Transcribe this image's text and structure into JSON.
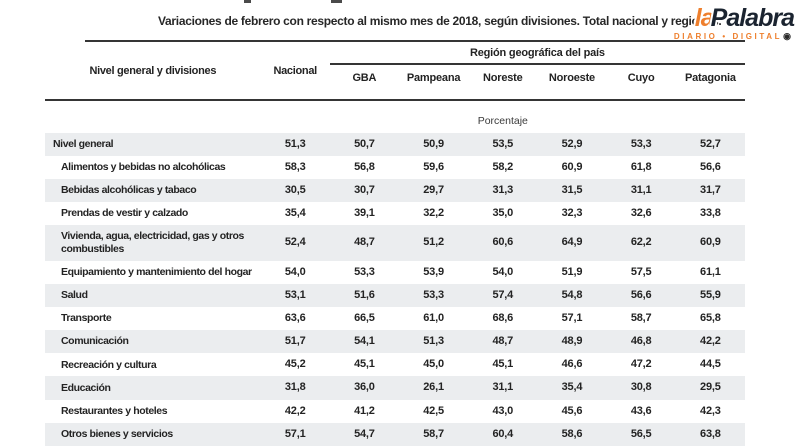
{
  "logo": {
    "name_accent": "la",
    "name_main": "Palabra",
    "tagline": "DIARIO • DIGITAL",
    "badge_glyph": "◉",
    "badge_icon_meaning": "registered-mark-icon",
    "accent_color": "#EE7F2D",
    "dark_color": "#1B2430"
  },
  "chart_data": {
    "type": "table",
    "title": "Variaciones de febrero con respecto al mismo mes de 2018, según divisiones. Total nacional y regiones.",
    "row_header": "Nivel general y divisiones",
    "national_column": "Nacional",
    "region_group_label": "Región geográfica del país",
    "region_columns": [
      "GBA",
      "Pampeana",
      "Noreste",
      "Noroeste",
      "Cuyo",
      "Patagonia"
    ],
    "unit_label": "Porcentaje",
    "stripe_color": "#EBEDEF",
    "rule_color": "#353535",
    "rows": [
      {
        "label": "Nivel general",
        "emphasis": true,
        "values": [
          "51,3",
          "50,7",
          "50,9",
          "53,5",
          "52,9",
          "53,3",
          "52,7"
        ]
      },
      {
        "label": "Alimentos y bebidas no alcohólicas",
        "values": [
          "58,3",
          "56,8",
          "59,6",
          "58,2",
          "60,9",
          "61,8",
          "56,6"
        ]
      },
      {
        "label": "Bebidas alcohólicas y tabaco",
        "values": [
          "30,5",
          "30,7",
          "29,7",
          "31,3",
          "31,5",
          "31,1",
          "31,7"
        ]
      },
      {
        "label": "Prendas de vestir y calzado",
        "values": [
          "35,4",
          "39,1",
          "32,2",
          "35,0",
          "32,3",
          "32,6",
          "33,8"
        ]
      },
      {
        "label": "Vivienda, agua, electricidad, gas y otros combustibles",
        "values": [
          "52,4",
          "48,7",
          "51,2",
          "60,6",
          "64,9",
          "62,2",
          "60,9"
        ]
      },
      {
        "label": "Equipamiento y mantenimiento del hogar",
        "values": [
          "54,0",
          "53,3",
          "53,9",
          "54,0",
          "51,9",
          "57,5",
          "61,1"
        ]
      },
      {
        "label": "Salud",
        "values": [
          "53,1",
          "51,6",
          "53,3",
          "57,4",
          "54,8",
          "56,6",
          "55,9"
        ]
      },
      {
        "label": "Transporte",
        "values": [
          "63,6",
          "66,5",
          "61,0",
          "68,6",
          "57,1",
          "58,7",
          "65,8"
        ]
      },
      {
        "label": "Comunicación",
        "values": [
          "51,7",
          "54,1",
          "51,3",
          "48,7",
          "48,9",
          "46,8",
          "42,2"
        ]
      },
      {
        "label": "Recreación y cultura",
        "values": [
          "45,2",
          "45,1",
          "45,0",
          "45,1",
          "46,6",
          "47,2",
          "44,5"
        ]
      },
      {
        "label": "Educación",
        "values": [
          "31,8",
          "36,0",
          "26,1",
          "31,1",
          "35,4",
          "30,8",
          "29,5"
        ]
      },
      {
        "label": "Restaurantes y hoteles",
        "values": [
          "42,2",
          "41,2",
          "42,5",
          "43,0",
          "45,6",
          "43,6",
          "42,3"
        ]
      },
      {
        "label": "Otros bienes y servicios",
        "values": [
          "57,1",
          "54,7",
          "58,7",
          "60,4",
          "58,6",
          "56,5",
          "63,8"
        ]
      }
    ]
  }
}
